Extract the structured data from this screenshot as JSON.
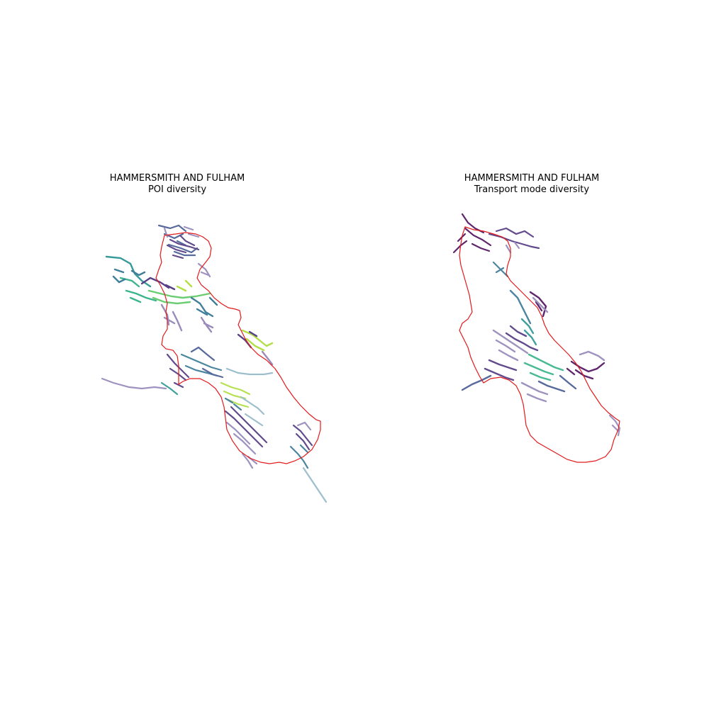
{
  "panels": [
    {
      "title_line1": "HAMMERSMITH AND FULHAM",
      "title_line2": "POI diversity"
    },
    {
      "title_line1": "HAMMERSMITH AND FULHAM",
      "title_line2": "Transport mode diversity"
    }
  ],
  "colors": {
    "boundary": "#e31a1c",
    "palette": [
      "#440154",
      "#472c7a",
      "#3b518b",
      "#2c718e",
      "#21908d",
      "#27ad81",
      "#5cc863",
      "#aadc32"
    ]
  }
}
